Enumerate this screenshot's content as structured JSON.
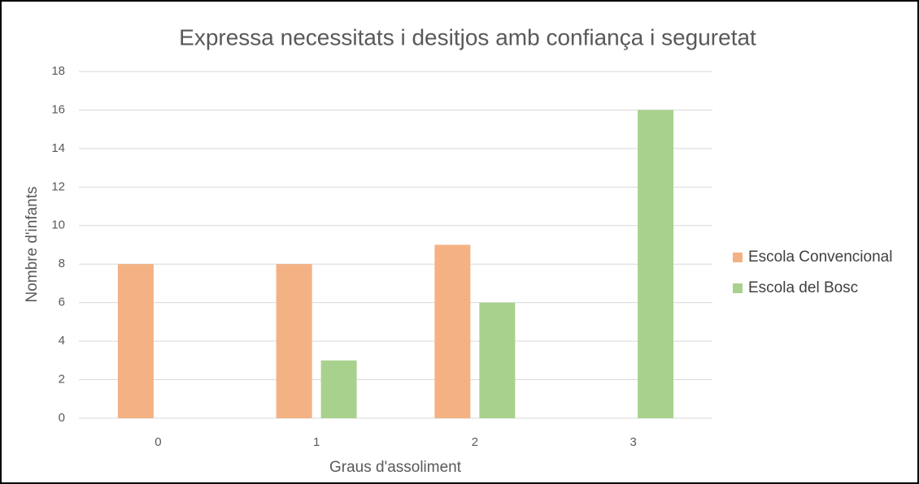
{
  "chart_data": {
    "type": "bar",
    "title": "Expressa necessitats i desitjos amb confiança i seguretat",
    "xlabel": "Graus d'assoliment",
    "ylabel": "Nombre d'infants",
    "categories": [
      "0",
      "1",
      "2",
      "3"
    ],
    "series": [
      {
        "name": "Escola Convencional",
        "color": "#f4b183",
        "values": [
          8,
          8,
          9,
          0
        ]
      },
      {
        "name": "Escola del Bosc",
        "color": "#a9d18e",
        "values": [
          0,
          3,
          6,
          16
        ]
      }
    ],
    "ylim": [
      0,
      18
    ],
    "yticks": [
      0,
      2,
      4,
      6,
      8,
      10,
      12,
      14,
      16,
      18
    ],
    "grid": true,
    "legend": "right"
  }
}
